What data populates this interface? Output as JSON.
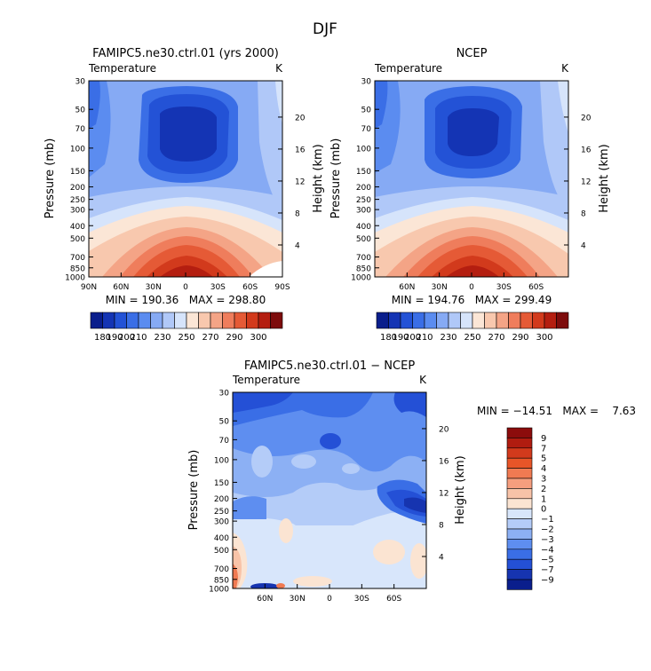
{
  "figure": {
    "title": "DJF"
  },
  "chart_data": [
    {
      "type": "heatmap",
      "title": "FAMIPC5.ne30.ctrl.01 (yrs 2000)",
      "variable": "Temperature",
      "units": "K",
      "ylabel": "Pressure (mb)",
      "y2label": "Height (km)",
      "y_ticks": [
        "30",
        "50",
        "70",
        "100",
        "150",
        "200",
        "250",
        "300",
        "400",
        "500",
        "700",
        "850",
        "1000"
      ],
      "y2_ticks": [
        "20",
        "16",
        "12",
        "8",
        "4"
      ],
      "x_ticks": [
        "90N",
        "60N",
        "30N",
        "0",
        "30S",
        "60S",
        "90S"
      ],
      "xlim": [
        "90N",
        "90S"
      ],
      "ylim": [
        1000,
        30
      ],
      "stats": "MIN = 190.36   MAX = 298.80",
      "colorbar": {
        "orientation": "horizontal",
        "labels": [
          "180",
          "190",
          "200",
          "210",
          "230",
          "250",
          "270",
          "290",
          "300"
        ]
      }
    },
    {
      "type": "heatmap",
      "title": "NCEP",
      "variable": "Temperature",
      "units": "K",
      "ylabel": "Pressure (mb)",
      "y2label": "Height (km)",
      "y_ticks": [
        "30",
        "50",
        "70",
        "100",
        "150",
        "200",
        "250",
        "300",
        "400",
        "500",
        "700",
        "850",
        "1000"
      ],
      "y2_ticks": [
        "20",
        "16",
        "12",
        "8",
        "4"
      ],
      "x_ticks": [
        "60N",
        "30N",
        "0",
        "30S",
        "60S"
      ],
      "ylim": [
        1000,
        30
      ],
      "stats": "MIN = 194.76   MAX = 299.49",
      "colorbar": {
        "orientation": "horizontal",
        "labels": [
          "180",
          "190",
          "200",
          "210",
          "230",
          "250",
          "270",
          "290",
          "300"
        ]
      }
    },
    {
      "type": "heatmap",
      "title": "FAMIPC5.ne30.ctrl.01 − NCEP",
      "variable": "Temperature",
      "units": "K",
      "ylabel": "Pressure (mb)",
      "y2label": "Height (km)",
      "y_ticks": [
        "30",
        "50",
        "70",
        "100",
        "150",
        "200",
        "250",
        "300",
        "400",
        "500",
        "700",
        "850",
        "1000"
      ],
      "y2_ticks": [
        "20",
        "16",
        "12",
        "8",
        "4"
      ],
      "x_ticks": [
        "60N",
        "30N",
        "0",
        "30S",
        "60S"
      ],
      "ylim": [
        1000,
        30
      ],
      "stats": "MIN = −14.51   MAX =    7.63",
      "colorbar": {
        "orientation": "vertical",
        "labels": [
          "9",
          "7",
          "5",
          "4",
          "3",
          "2",
          "1",
          "0",
          "−1",
          "−2",
          "−3",
          "−4",
          "−5",
          "−7",
          "−9"
        ]
      }
    }
  ],
  "colors": {
    "abs_scale": [
      "#0a1e8c",
      "#1434b4",
      "#2352d6",
      "#3a6ee6",
      "#5b8cf0",
      "#86aaf4",
      "#b0c8f8",
      "#d6e4fb",
      "#fbe6d6",
      "#f8c8ae",
      "#f4a486",
      "#ef7d5c",
      "#e55a36",
      "#d23a1c",
      "#b41e10",
      "#7d0c0c"
    ],
    "diff_scale": [
      "#8c0c0c",
      "#b01c10",
      "#d23a1c",
      "#e85528",
      "#f07a52",
      "#f59e7e",
      "#f8c3a8",
      "#fbe4d2",
      "#d8e6fb",
      "#b4ccf8",
      "#8cb0f4",
      "#5e8ef0",
      "#3a6ee6",
      "#2450d6",
      "#1634b0",
      "#0a1e8c"
    ]
  }
}
